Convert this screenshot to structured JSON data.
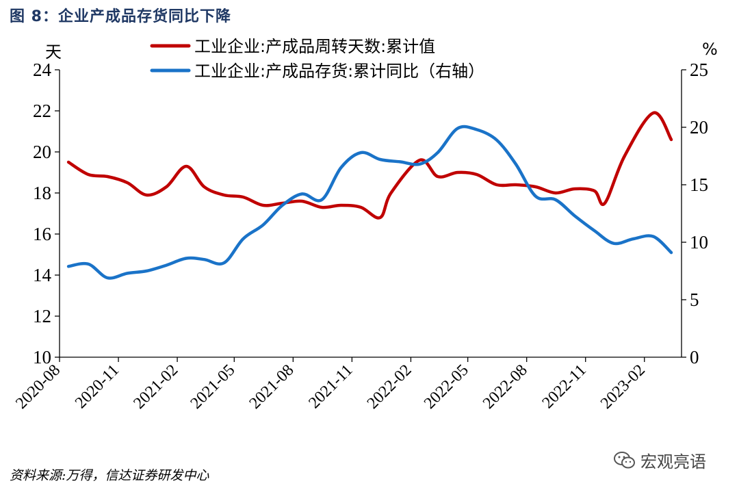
{
  "figure_title": "图 8：企业产成品存货同比下降",
  "source": "资料来源:万得，信达证券研发中心",
  "watermark": {
    "text": "宏观亮语",
    "icon": "wechat-icon"
  },
  "chart_data": {
    "type": "line",
    "left_unit": "天",
    "right_unit": "%",
    "y_left": {
      "min": 10,
      "max": 24,
      "ticks": [
        10,
        12,
        14,
        16,
        18,
        20,
        22,
        24
      ]
    },
    "y_right": {
      "min": 0,
      "max": 25,
      "ticks": [
        0,
        5,
        10,
        15,
        20,
        25
      ]
    },
    "x_range": [
      "2020-08",
      "2023-03"
    ],
    "x_ticks": [
      "2020-08",
      "2020-11",
      "2021-02",
      "2021-05",
      "2021-08",
      "2021-11",
      "2022-02",
      "2022-05",
      "2022-08",
      "2022-11",
      "2023-02"
    ],
    "grid": false,
    "legend_position": "top",
    "series": [
      {
        "name": "工业企业:产成品周转天数:累计值",
        "axis": "left",
        "color": "#c00000",
        "points": [
          [
            "2020-08-15",
            19.5
          ],
          [
            "2020-09-15",
            18.9
          ],
          [
            "2020-10-15",
            18.8
          ],
          [
            "2020-11-15",
            18.5
          ],
          [
            "2020-12-15",
            17.9
          ],
          [
            "2021-01-15",
            18.3
          ],
          [
            "2021-02-15",
            19.3
          ],
          [
            "2021-03-15",
            18.3
          ],
          [
            "2021-04-15",
            17.9
          ],
          [
            "2021-05-15",
            17.8
          ],
          [
            "2021-06-15",
            17.4
          ],
          [
            "2021-07-15",
            17.5
          ],
          [
            "2021-08-15",
            17.6
          ],
          [
            "2021-09-15",
            17.3
          ],
          [
            "2021-10-15",
            17.4
          ],
          [
            "2021-11-15",
            17.3
          ],
          [
            "2021-12-15",
            16.8
          ],
          [
            "2022-01-01",
            18.0
          ],
          [
            "2022-02-15",
            19.6
          ],
          [
            "2022-03-15",
            18.8
          ],
          [
            "2022-04-15",
            19.0
          ],
          [
            "2022-05-15",
            18.9
          ],
          [
            "2022-06-15",
            18.4
          ],
          [
            "2022-07-15",
            18.4
          ],
          [
            "2022-08-15",
            18.3
          ],
          [
            "2022-09-15",
            18.0
          ],
          [
            "2022-10-15",
            18.2
          ],
          [
            "2022-11-15",
            18.1
          ],
          [
            "2022-12-01",
            17.5
          ],
          [
            "2023-01-01",
            19.8
          ],
          [
            "2023-02-15",
            21.9
          ],
          [
            "2023-03-15",
            20.6
          ]
        ]
      },
      {
        "name": "工业企业:产成品存货:累计同比（右轴）",
        "axis": "right",
        "color": "#1a73c8",
        "points": [
          [
            "2020-08-15",
            7.9
          ],
          [
            "2020-09-15",
            8.1
          ],
          [
            "2020-10-15",
            6.9
          ],
          [
            "2020-11-15",
            7.3
          ],
          [
            "2020-12-15",
            7.5
          ],
          [
            "2021-01-15",
            8.0
          ],
          [
            "2021-02-15",
            8.6
          ],
          [
            "2021-03-15",
            8.5
          ],
          [
            "2021-04-15",
            8.2
          ],
          [
            "2021-05-15",
            10.3
          ],
          [
            "2021-06-15",
            11.5
          ],
          [
            "2021-07-15",
            13.2
          ],
          [
            "2021-08-15",
            14.2
          ],
          [
            "2021-09-15",
            13.7
          ],
          [
            "2021-10-15",
            16.5
          ],
          [
            "2021-11-15",
            17.8
          ],
          [
            "2021-12-15",
            17.2
          ],
          [
            "2022-01-15",
            17.0
          ],
          [
            "2022-02-15",
            16.8
          ],
          [
            "2022-03-15",
            17.8
          ],
          [
            "2022-04-15",
            19.9
          ],
          [
            "2022-05-15",
            19.8
          ],
          [
            "2022-06-15",
            18.9
          ],
          [
            "2022-07-15",
            16.8
          ],
          [
            "2022-08-15",
            14.0
          ],
          [
            "2022-09-15",
            13.7
          ],
          [
            "2022-10-15",
            12.3
          ],
          [
            "2022-11-15",
            11.0
          ],
          [
            "2022-12-15",
            9.9
          ],
          [
            "2023-01-15",
            10.3
          ],
          [
            "2023-02-15",
            10.5
          ],
          [
            "2023-03-15",
            9.1
          ]
        ]
      }
    ]
  }
}
